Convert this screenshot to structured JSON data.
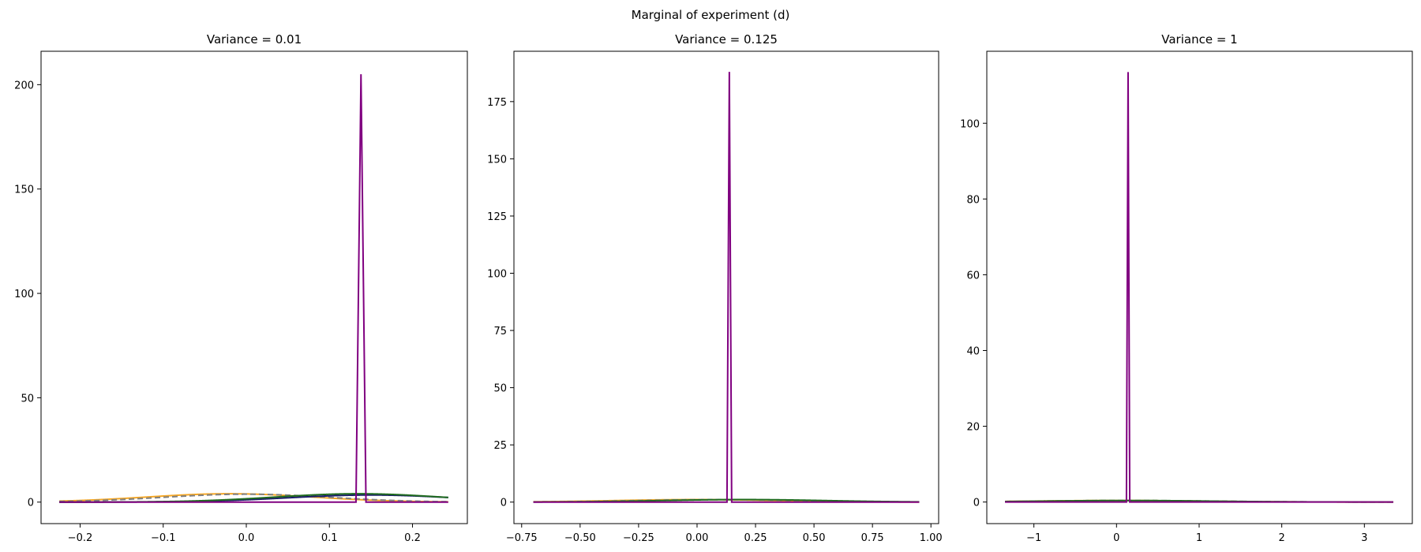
{
  "figure": {
    "suptitle": "Marginal of experiment (d)"
  },
  "colors": {
    "purple": "#800080",
    "orange": "#f5a623",
    "green": "#1f6b1f",
    "gray_dashed": "#808080",
    "navy": "#1b1b6b"
  },
  "chart_data": [
    {
      "type": "line",
      "title": "Variance = 0.01",
      "xlim": [
        -0.247,
        0.266
      ],
      "ylim": [
        -10.3,
        216
      ],
      "xticks": [
        -0.2,
        -0.1,
        0.0,
        0.1,
        0.2
      ],
      "xtick_labels": [
        "−0.2",
        "−0.1",
        "0.0",
        "0.1",
        "0.2"
      ],
      "yticks": [
        0,
        50,
        100,
        150,
        200
      ],
      "ytick_labels": [
        "0",
        "50",
        "100",
        "150",
        "200"
      ],
      "x_range": [
        -0.225,
        0.243
      ],
      "series": [
        {
          "color_key": "orange",
          "style": "solid",
          "shape": "gaussian",
          "mu": -0.02,
          "sigma": 0.1,
          "peak": 4.0
        },
        {
          "color_key": "gray_dashed",
          "style": "dashed",
          "shape": "gaussian",
          "mu": 0.0,
          "sigma": 0.1,
          "peak": 3.8
        },
        {
          "color_key": "navy",
          "style": "solid",
          "shape": "gaussian",
          "mu": 0.15,
          "sigma": 0.1,
          "peak": 3.4
        },
        {
          "color_key": "green",
          "style": "solid",
          "shape": "gaussian",
          "mu": 0.135,
          "sigma": 0.1,
          "peak": 4.0
        },
        {
          "color_key": "purple",
          "style": "solid",
          "shape": "spike",
          "mu": 0.138,
          "halfwidth": 0.006,
          "peak": 205
        }
      ]
    },
    {
      "type": "line",
      "title": "Variance = 0.125",
      "xlim": [
        -0.783,
        1.033
      ],
      "ylim": [
        -9.4,
        197
      ],
      "xticks": [
        -0.75,
        -0.5,
        -0.25,
        0.0,
        0.25,
        0.5,
        0.75,
        1.0
      ],
      "xtick_labels": [
        "−0.75",
        "−0.50",
        "−0.25",
        "0.00",
        "0.25",
        "0.50",
        "0.75",
        "1.00"
      ],
      "yticks": [
        0,
        25,
        50,
        75,
        100,
        125,
        150,
        175
      ],
      "ytick_labels": [
        "0",
        "25",
        "50",
        "75",
        "100",
        "125",
        "150",
        "175"
      ],
      "x_range": [
        -0.7,
        0.95
      ],
      "series": [
        {
          "color_key": "orange",
          "style": "solid",
          "shape": "gaussian",
          "mu": 0.0,
          "sigma": 0.35,
          "peak": 1.1
        },
        {
          "color_key": "gray_dashed",
          "style": "dashed",
          "shape": "gaussian",
          "mu": 0.1,
          "sigma": 0.35,
          "peak": 1.1
        },
        {
          "color_key": "green",
          "style": "solid",
          "shape": "gaussian",
          "mu": 0.2,
          "sigma": 0.35,
          "peak": 1.1
        },
        {
          "color_key": "purple",
          "style": "solid",
          "shape": "spike",
          "mu": 0.138,
          "halfwidth": 0.01,
          "peak": 188
        }
      ]
    },
    {
      "type": "line",
      "title": "Variance = 1",
      "xlim": [
        -1.57,
        3.58
      ],
      "ylim": [
        -5.7,
        119
      ],
      "xticks": [
        -1,
        0,
        1,
        2,
        3
      ],
      "xtick_labels": [
        "−1",
        "0",
        "1",
        "2",
        "3"
      ],
      "yticks": [
        0,
        20,
        40,
        60,
        80,
        100
      ],
      "ytick_labels": [
        "0",
        "20",
        "40",
        "60",
        "80",
        "100"
      ],
      "x_range": [
        -1.35,
        3.35
      ],
      "series": [
        {
          "color_key": "orange",
          "style": "solid",
          "shape": "gaussian",
          "mu": 0.0,
          "sigma": 1.0,
          "peak": 0.4
        },
        {
          "color_key": "gray_dashed",
          "style": "dashed",
          "shape": "gaussian",
          "mu": 0.1,
          "sigma": 1.0,
          "peak": 0.4
        },
        {
          "color_key": "green",
          "style": "solid",
          "shape": "gaussian",
          "mu": 0.14,
          "sigma": 1.0,
          "peak": 0.4
        },
        {
          "color_key": "purple",
          "style": "solid",
          "shape": "spike",
          "mu": 0.14,
          "halfwidth": 0.02,
          "peak": 113.5
        }
      ]
    }
  ]
}
